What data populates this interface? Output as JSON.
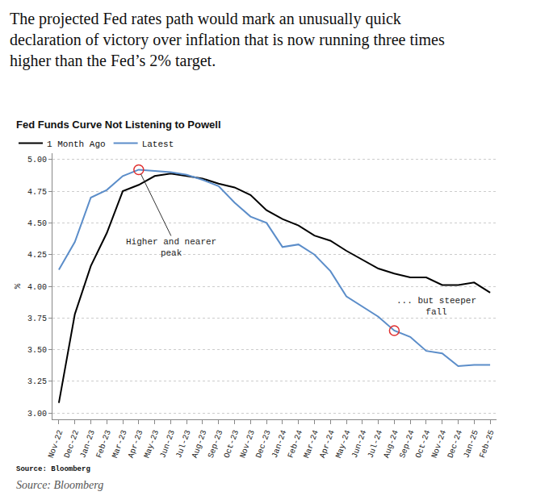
{
  "chart_data": {
    "type": "line",
    "headline": [
      "The projected Fed rates path would mark an unusually quick",
      "declaration of victory over inflation that is now running three times",
      "higher than the Fed’s 2% target."
    ],
    "title": "Fed Funds Curve Not Listening to Powell",
    "categories": [
      "Nov-22",
      "Dec-22",
      "Jan-23",
      "Feb-23",
      "Mar-23",
      "Apr-23",
      "May-23",
      "Jun-23",
      "Jul-23",
      "Aug-23",
      "Sep-23",
      "Oct-23",
      "Nov-23",
      "Dec-23",
      "Jan-24",
      "Feb-24",
      "Mar-24",
      "Apr-24",
      "May-24",
      "Jun-24",
      "Jul-24",
      "Aug-24",
      "Sep-24",
      "Oct-24",
      "Nov-24",
      "Dec-24",
      "Jan-25",
      "Feb-25"
    ],
    "series": [
      {
        "name": "1 Month Ago",
        "color": "#000000",
        "values": [
          3.08,
          3.78,
          4.16,
          4.42,
          4.75,
          4.8,
          4.87,
          4.89,
          4.87,
          4.85,
          4.81,
          4.78,
          4.72,
          4.6,
          4.53,
          4.48,
          4.4,
          4.36,
          4.28,
          4.21,
          4.14,
          4.1,
          4.07,
          4.07,
          4.01,
          4.01,
          4.03,
          3.95
        ]
      },
      {
        "name": "Latest",
        "color": "#5b8dc9",
        "values": [
          4.13,
          4.35,
          4.7,
          4.76,
          4.87,
          4.92,
          4.91,
          4.9,
          4.88,
          4.84,
          4.79,
          4.66,
          4.55,
          4.5,
          4.31,
          4.33,
          4.25,
          4.12,
          3.92,
          3.84,
          3.76,
          3.65,
          3.6,
          3.49,
          3.47,
          3.37,
          3.38,
          3.38
        ]
      }
    ],
    "y_label": "%",
    "ylim": [
      2.95,
      5.05
    ],
    "yticks": [
      {
        "value": 3,
        "label": "3.00"
      },
      {
        "value": 3.25,
        "label": "3.25"
      },
      {
        "value": 3.5,
        "label": "3.50"
      },
      {
        "value": 3.75,
        "label": "3.75"
      },
      {
        "value": 4,
        "label": "4.00"
      },
      {
        "value": 4.25,
        "label": "4.25"
      },
      {
        "value": 4.5,
        "label": "4.50"
      },
      {
        "value": 4.75,
        "label": "4.75"
      },
      {
        "value": 5,
        "label": "5.00"
      }
    ],
    "grid": true,
    "legend": "top left",
    "annotations": [
      {
        "text": [
          "Higher and nearer",
          "peak"
        ],
        "x": "Apr-23",
        "y": 4.92
      },
      {
        "text": [
          "... but steeper",
          "fall"
        ],
        "x": "Aug-24",
        "y": 3.65
      }
    ],
    "source": "Source: Bloomberg",
    "caption": "Source: Bloomberg"
  }
}
